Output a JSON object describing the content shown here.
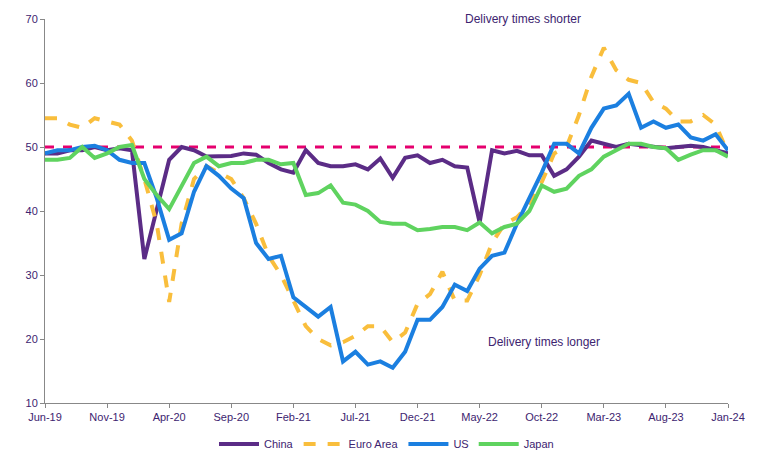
{
  "chart_data": {
    "type": "line",
    "categories": [
      "Jun-19",
      null,
      null,
      null,
      null,
      "Nov-19",
      null,
      null,
      null,
      null,
      "Apr-20",
      null,
      null,
      null,
      null,
      "Sep-20",
      null,
      null,
      null,
      null,
      "Feb-21",
      null,
      null,
      null,
      null,
      "Jul-21",
      null,
      null,
      null,
      null,
      "Dec-21",
      null,
      null,
      null,
      null,
      "May-22",
      null,
      null,
      null,
      null,
      "Oct-22",
      null,
      null,
      null,
      null,
      "Mar-23",
      null,
      null,
      null,
      null,
      "Aug-23",
      null,
      null,
      null,
      null,
      "Jan-24"
    ],
    "series": [
      {
        "name": "China",
        "color": "#5b2c86",
        "line_style": "solid",
        "values": [
          49,
          49,
          49.5,
          49.5,
          50,
          49.5,
          49.8,
          49.5,
          32.5,
          40,
          48,
          50,
          49.5,
          48.5,
          48.5,
          48.6,
          49,
          48.8,
          47.5,
          46.5,
          46,
          49.5,
          47.5,
          47,
          47,
          47.3,
          46.5,
          48.2,
          45.2,
          48.3,
          48.7,
          47.5,
          48,
          47,
          46.8,
          38.2,
          49.5,
          49,
          49.4,
          48.7,
          48.7,
          45.5,
          46.5,
          48.5,
          51,
          50.5,
          50,
          50.5,
          50.3,
          50,
          49.8,
          50,
          50.2,
          50,
          49.5,
          49
        ]
      },
      {
        "name": "Euro Area",
        "color": "#f9be3c",
        "line_style": "dashed",
        "values": [
          54.5,
          54.5,
          53.5,
          53,
          54.5,
          54,
          53.5,
          51,
          45,
          38,
          25.8,
          38,
          45,
          47,
          46,
          45,
          42,
          38,
          33,
          30,
          26,
          22,
          20,
          19,
          19.5,
          20.5,
          22,
          22,
          19.5,
          21,
          25.5,
          27,
          30.5,
          26,
          26,
          30,
          35,
          38,
          39,
          41,
          44.5,
          49,
          50,
          55,
          61,
          65.5,
          62,
          60.5,
          60,
          57,
          56,
          54,
          54,
          55,
          53.5,
          49
        ]
      },
      {
        "name": "US",
        "color": "#1b7fe0",
        "line_style": "solid",
        "values": [
          49,
          49.5,
          49.5,
          50,
          50.2,
          49.5,
          48,
          47.5,
          47.5,
          42,
          35.5,
          36.5,
          43,
          47,
          45.5,
          43.5,
          42,
          35,
          32.5,
          33,
          26.5,
          25,
          23.5,
          25,
          16.5,
          18,
          16,
          16.5,
          15.5,
          18,
          23,
          23,
          25,
          28.5,
          27.5,
          31,
          33,
          33.5,
          38,
          42,
          46,
          50.5,
          50.5,
          49,
          53,
          56,
          56.5,
          58.3,
          53,
          54,
          53,
          53.5,
          51.5,
          51,
          52,
          49.5
        ]
      },
      {
        "name": "Japan",
        "color": "#5fd35f",
        "line_style": "solid",
        "values": [
          48,
          48,
          48.3,
          50,
          48.3,
          49,
          50,
          50.3,
          45,
          42.5,
          40.3,
          44,
          47.5,
          48.5,
          47,
          47.5,
          47.5,
          48,
          48,
          47.3,
          47.5,
          42.5,
          42.8,
          44,
          41.3,
          41,
          40,
          38.3,
          38,
          38,
          37,
          37.2,
          37.5,
          37.5,
          37,
          38.2,
          36.5,
          37.5,
          38,
          40,
          44,
          43,
          43.5,
          45.5,
          46.5,
          48.5,
          49.5,
          50.5,
          50.5,
          50,
          49.8,
          48,
          48.8,
          49.5,
          49.5,
          48.5
        ]
      },
      {
        "color": "#e5006e",
        "line_style": "dashed",
        "values": [
          50,
          50,
          50,
          50,
          50,
          50,
          50,
          50,
          50,
          50,
          50,
          50,
          50,
          50,
          50,
          50,
          50,
          50,
          50,
          50,
          50,
          50,
          50,
          50,
          50,
          50,
          50,
          50,
          50,
          50,
          50,
          50,
          50,
          50,
          50,
          50,
          50,
          50,
          50,
          50,
          50,
          50,
          50,
          50,
          50,
          50,
          50,
          50,
          50,
          50,
          50,
          50,
          50,
          50,
          50,
          50
        ]
      }
    ],
    "annotations": [
      "Delivery times shorter",
      "Delivery times longer"
    ],
    "ylim": [
      10,
      70
    ],
    "yticks": [
      10,
      20,
      30,
      40,
      50,
      60,
      70
    ],
    "grid": false,
    "legend": "bottom"
  }
}
